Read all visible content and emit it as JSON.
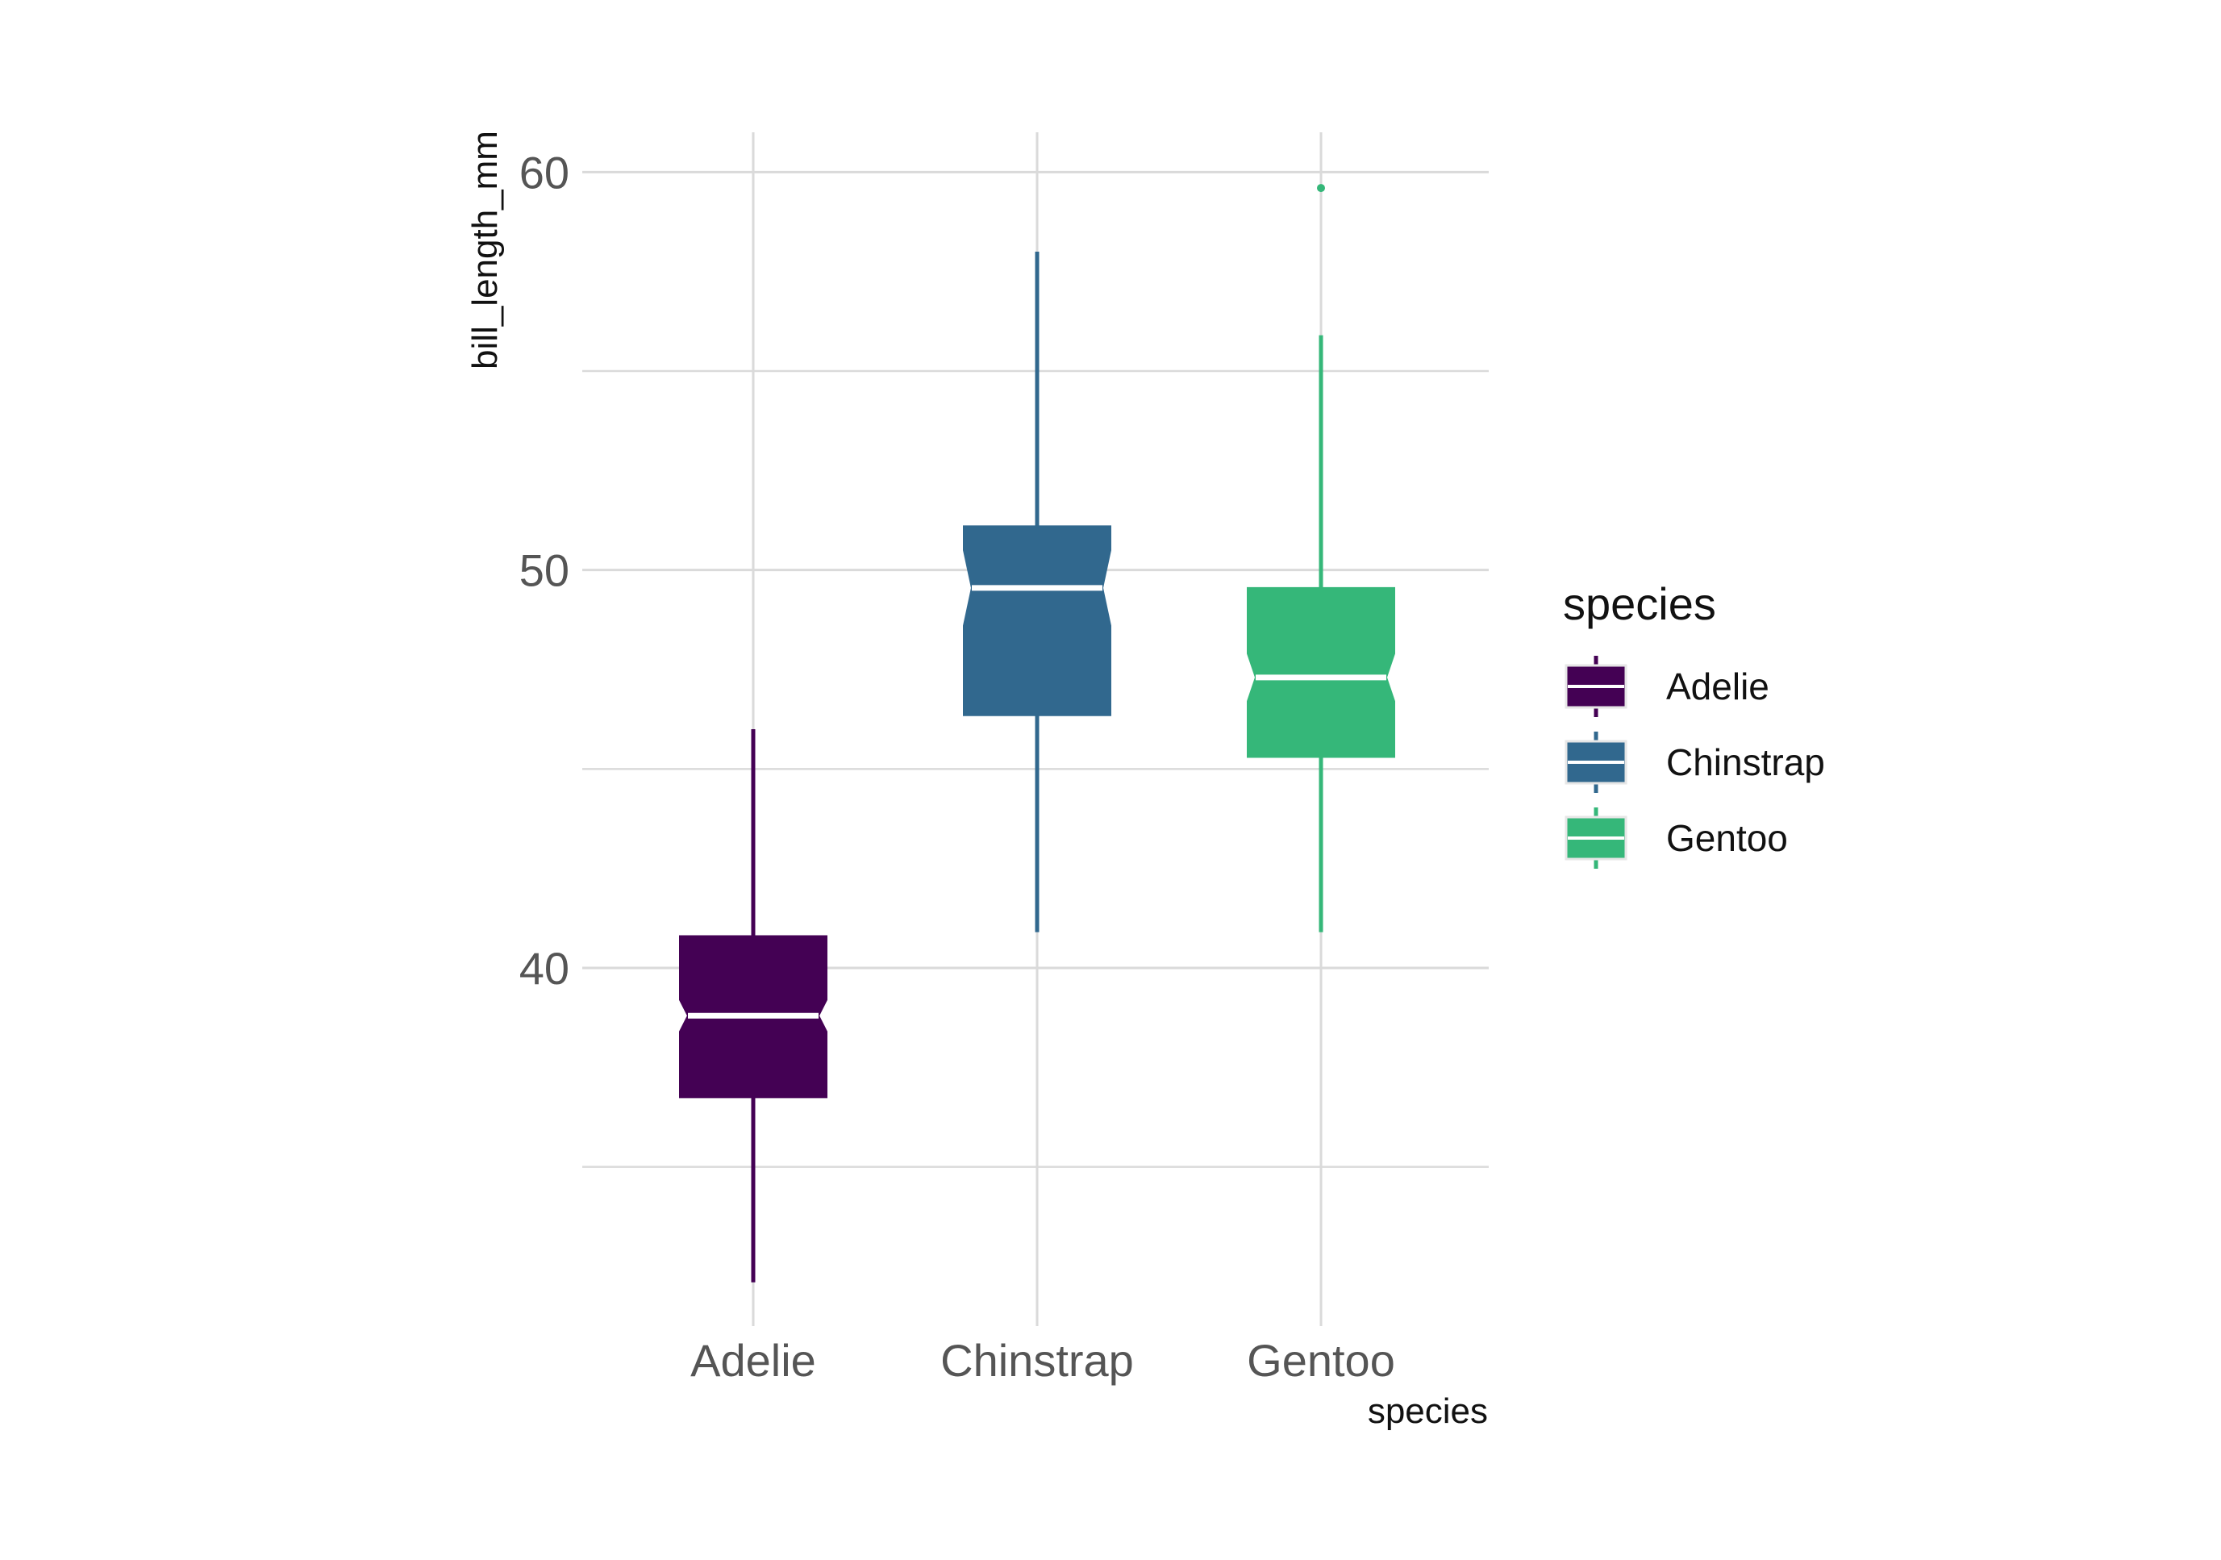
{
  "chart_data": {
    "type": "boxplot",
    "notched": true,
    "xlabel": "species",
    "ylabel": "bill_length_mm",
    "ylim": [
      31,
      61
    ],
    "yticks": [
      40,
      50,
      60
    ],
    "grid": true,
    "legend": {
      "title": "species",
      "placement": "right"
    },
    "categories": [
      "Adelie",
      "Chinstrap",
      "Gentoo"
    ],
    "series": [
      {
        "name": "Adelie",
        "color": "#440154",
        "whisker_low": 32.1,
        "q1": 36.75,
        "median": 38.8,
        "q3": 40.8,
        "whisker_high": 46.0,
        "notch_low": 38.4,
        "notch_high": 39.2,
        "outliers": []
      },
      {
        "name": "Chinstrap",
        "color": "#31688E",
        "whisker_low": 40.9,
        "q1": 46.35,
        "median": 49.55,
        "q3": 51.1,
        "whisker_high": 58.0,
        "notch_low": 48.6,
        "notch_high": 50.5,
        "outliers": []
      },
      {
        "name": "Gentoo",
        "color": "#35B779",
        "whisker_low": 40.9,
        "q1": 45.3,
        "median": 47.3,
        "q3": 49.55,
        "whisker_high": 55.9,
        "notch_low": 46.7,
        "notch_high": 47.9,
        "outliers": [
          59.6
        ]
      }
    ]
  }
}
